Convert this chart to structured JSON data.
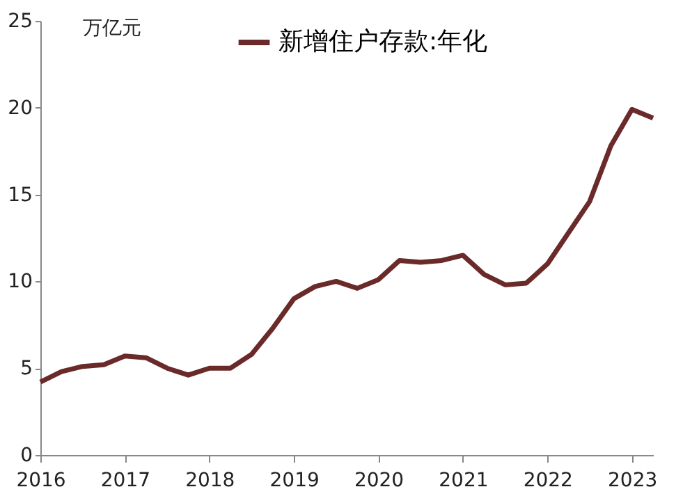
{
  "chart_data": {
    "type": "line",
    "ylabel": "万亿元",
    "x": [
      2016.0,
      2016.25,
      2016.5,
      2016.75,
      2017.0,
      2017.25,
      2017.5,
      2017.75,
      2018.0,
      2018.25,
      2018.5,
      2018.75,
      2019.0,
      2019.25,
      2019.5,
      2019.75,
      2020.0,
      2020.25,
      2020.5,
      2020.75,
      2021.0,
      2021.25,
      2021.5,
      2021.75,
      2022.0,
      2022.25,
      2022.5,
      2022.75,
      2023.0,
      2023.25
    ],
    "series": [
      {
        "name": "新增住户存款:年化",
        "color": "#6b2a2a",
        "values": [
          4.2,
          4.8,
          5.1,
          5.2,
          5.7,
          5.6,
          5.0,
          4.6,
          5.0,
          5.0,
          5.8,
          7.3,
          9.0,
          9.7,
          10.0,
          9.6,
          10.1,
          11.2,
          11.1,
          11.2,
          11.5,
          10.4,
          9.8,
          9.9,
          11.0,
          12.8,
          14.6,
          17.8,
          19.9,
          19.4
        ]
      }
    ],
    "xlim": [
      2016,
      2023.25
    ],
    "xticks": [
      2016,
      2017,
      2018,
      2019,
      2020,
      2021,
      2022,
      2023
    ],
    "ylim": [
      0,
      25
    ],
    "yticks": [
      0,
      5,
      10,
      15,
      20,
      25
    ],
    "grid": false,
    "legend": "top",
    "marker": "none",
    "line_style": "solid"
  }
}
